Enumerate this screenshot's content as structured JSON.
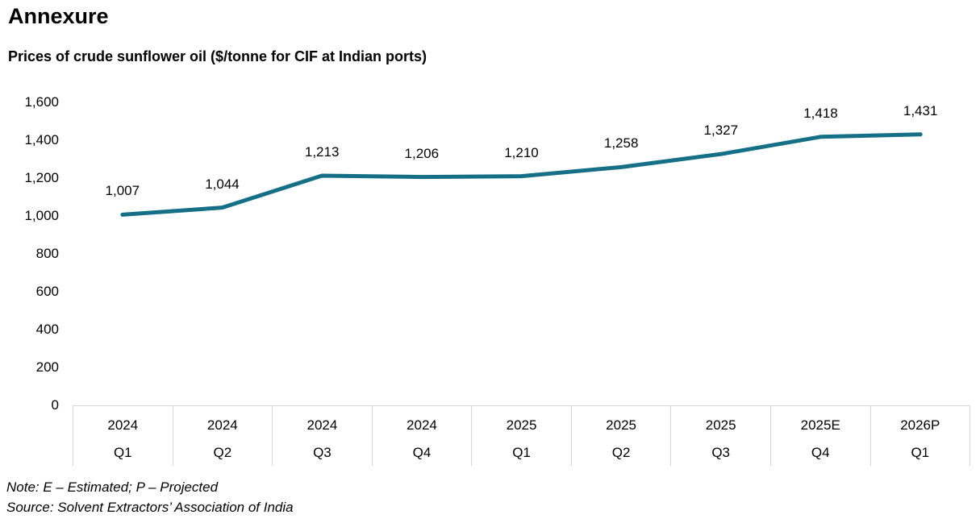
{
  "page": {
    "title": "Annexure",
    "note": "Note: E – Estimated; P – Projected",
    "source": "Source: Solvent Extractors’ Association of India"
  },
  "chart_data": {
    "type": "line",
    "title": "Prices of crude sunflower oil ($/tonne for CIF at Indian ports)",
    "categories": [
      {
        "year": "2024",
        "quarter": "Q1"
      },
      {
        "year": "2024",
        "quarter": "Q2"
      },
      {
        "year": "2024",
        "quarter": "Q3"
      },
      {
        "year": "2024",
        "quarter": "Q4"
      },
      {
        "year": "2025",
        "quarter": "Q1"
      },
      {
        "year": "2025",
        "quarter": "Q2"
      },
      {
        "year": "2025",
        "quarter": "Q3"
      },
      {
        "year": "2025E",
        "quarter": "Q4"
      },
      {
        "year": "2026P",
        "quarter": "Q1"
      }
    ],
    "values": [
      1007,
      1044,
      1213,
      1206,
      1210,
      1258,
      1327,
      1418,
      1431
    ],
    "data_labels": [
      "1,007",
      "1,044",
      "1,213",
      "1,206",
      "1,210",
      "1,258",
      "1,327",
      "1,418",
      "1,431"
    ],
    "xlabel": "",
    "ylabel": "",
    "ylim": [
      0,
      1600
    ],
    "ytick_step": 200,
    "yticks": [
      "1,600",
      "1,400",
      "1,200",
      "1,000",
      "800",
      "600",
      "400",
      "200",
      "0"
    ],
    "line_color": "#156f87",
    "grid": false,
    "legend": "none",
    "markers": false
  }
}
